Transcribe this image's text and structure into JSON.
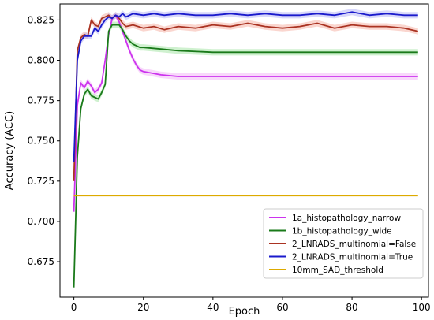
{
  "chart_data": {
    "type": "line",
    "xlabel": "Epoch",
    "ylabel": "Accuracy (ACC)",
    "xlim": [
      -4,
      102
    ],
    "ylim": [
      0.653,
      0.835
    ],
    "xticks": [
      0,
      20,
      40,
      60,
      80,
      100
    ],
    "yticks": [
      0.675,
      0.7,
      0.725,
      0.75,
      0.775,
      0.8,
      0.825
    ],
    "ytick_labels": [
      "0.675",
      "0.700",
      "0.725",
      "0.750",
      "0.775",
      "0.800",
      "0.825"
    ],
    "grid": false,
    "legend_position": "lower-right",
    "series": [
      {
        "name": "1a_histopathology_narrow",
        "color": "#cc33ee",
        "band_color": "#f3b8f7",
        "x": [
          0,
          1,
          2,
          3,
          4,
          5,
          6,
          7,
          8,
          9,
          10,
          11,
          12,
          13,
          14,
          15,
          16,
          17,
          18,
          19,
          20,
          25,
          30,
          40,
          50,
          60,
          70,
          80,
          90,
          99
        ],
        "y": [
          0.706,
          0.772,
          0.786,
          0.783,
          0.787,
          0.784,
          0.78,
          0.782,
          0.786,
          0.8,
          0.816,
          0.826,
          0.828,
          0.824,
          0.818,
          0.812,
          0.806,
          0.801,
          0.797,
          0.794,
          0.793,
          0.791,
          0.79,
          0.79,
          0.79,
          0.79,
          0.79,
          0.79,
          0.79,
          0.79
        ]
      },
      {
        "name": "1b_histopathology_wide",
        "color": "#1a7a1a",
        "band_color": "#a8e6a8",
        "x": [
          0,
          1,
          2,
          3,
          4,
          5,
          6,
          7,
          8,
          9,
          10,
          11,
          12,
          13,
          14,
          15,
          16,
          17,
          18,
          19,
          20,
          25,
          30,
          40,
          50,
          60,
          70,
          80,
          90,
          99
        ],
        "y": [
          0.659,
          0.74,
          0.77,
          0.779,
          0.782,
          0.778,
          0.777,
          0.776,
          0.78,
          0.785,
          0.818,
          0.822,
          0.822,
          0.822,
          0.819,
          0.815,
          0.812,
          0.81,
          0.809,
          0.808,
          0.808,
          0.807,
          0.806,
          0.805,
          0.805,
          0.805,
          0.805,
          0.805,
          0.805,
          0.805
        ]
      },
      {
        "name": "2_LNRADS_multinomial=False",
        "color": "#aa3322",
        "band_color": "#f5b5a8",
        "x": [
          0,
          1,
          2,
          3,
          4,
          5,
          6,
          7,
          8,
          9,
          10,
          11,
          12,
          13,
          14,
          15,
          17,
          20,
          23,
          26,
          30,
          35,
          40,
          45,
          50,
          55,
          60,
          65,
          70,
          75,
          80,
          85,
          90,
          95,
          99
        ],
        "y": [
          0.725,
          0.806,
          0.814,
          0.816,
          0.815,
          0.825,
          0.822,
          0.821,
          0.826,
          0.827,
          0.828,
          0.826,
          0.828,
          0.826,
          0.823,
          0.821,
          0.822,
          0.82,
          0.821,
          0.819,
          0.821,
          0.82,
          0.822,
          0.821,
          0.823,
          0.821,
          0.82,
          0.821,
          0.823,
          0.82,
          0.822,
          0.821,
          0.821,
          0.82,
          0.818
        ]
      },
      {
        "name": "2_LNRADS_multinomial=True",
        "color": "#1a1acc",
        "band_color": "#b8b8f5",
        "x": [
          0,
          1,
          2,
          3,
          4,
          5,
          6,
          7,
          8,
          9,
          10,
          11,
          12,
          13,
          14,
          15,
          17,
          20,
          23,
          26,
          30,
          35,
          40,
          45,
          50,
          55,
          60,
          65,
          70,
          75,
          80,
          85,
          90,
          95,
          99
        ],
        "y": [
          0.737,
          0.8,
          0.812,
          0.815,
          0.815,
          0.815,
          0.82,
          0.818,
          0.822,
          0.825,
          0.827,
          0.826,
          0.828,
          0.827,
          0.829,
          0.827,
          0.829,
          0.828,
          0.829,
          0.828,
          0.829,
          0.828,
          0.828,
          0.829,
          0.828,
          0.829,
          0.828,
          0.828,
          0.829,
          0.828,
          0.83,
          0.828,
          0.829,
          0.828,
          0.828
        ]
      },
      {
        "name": "10mm_SAD_threshold",
        "color": "#ddaa00",
        "x": [
          0,
          99
        ],
        "y": [
          0.716,
          0.716
        ]
      }
    ]
  }
}
